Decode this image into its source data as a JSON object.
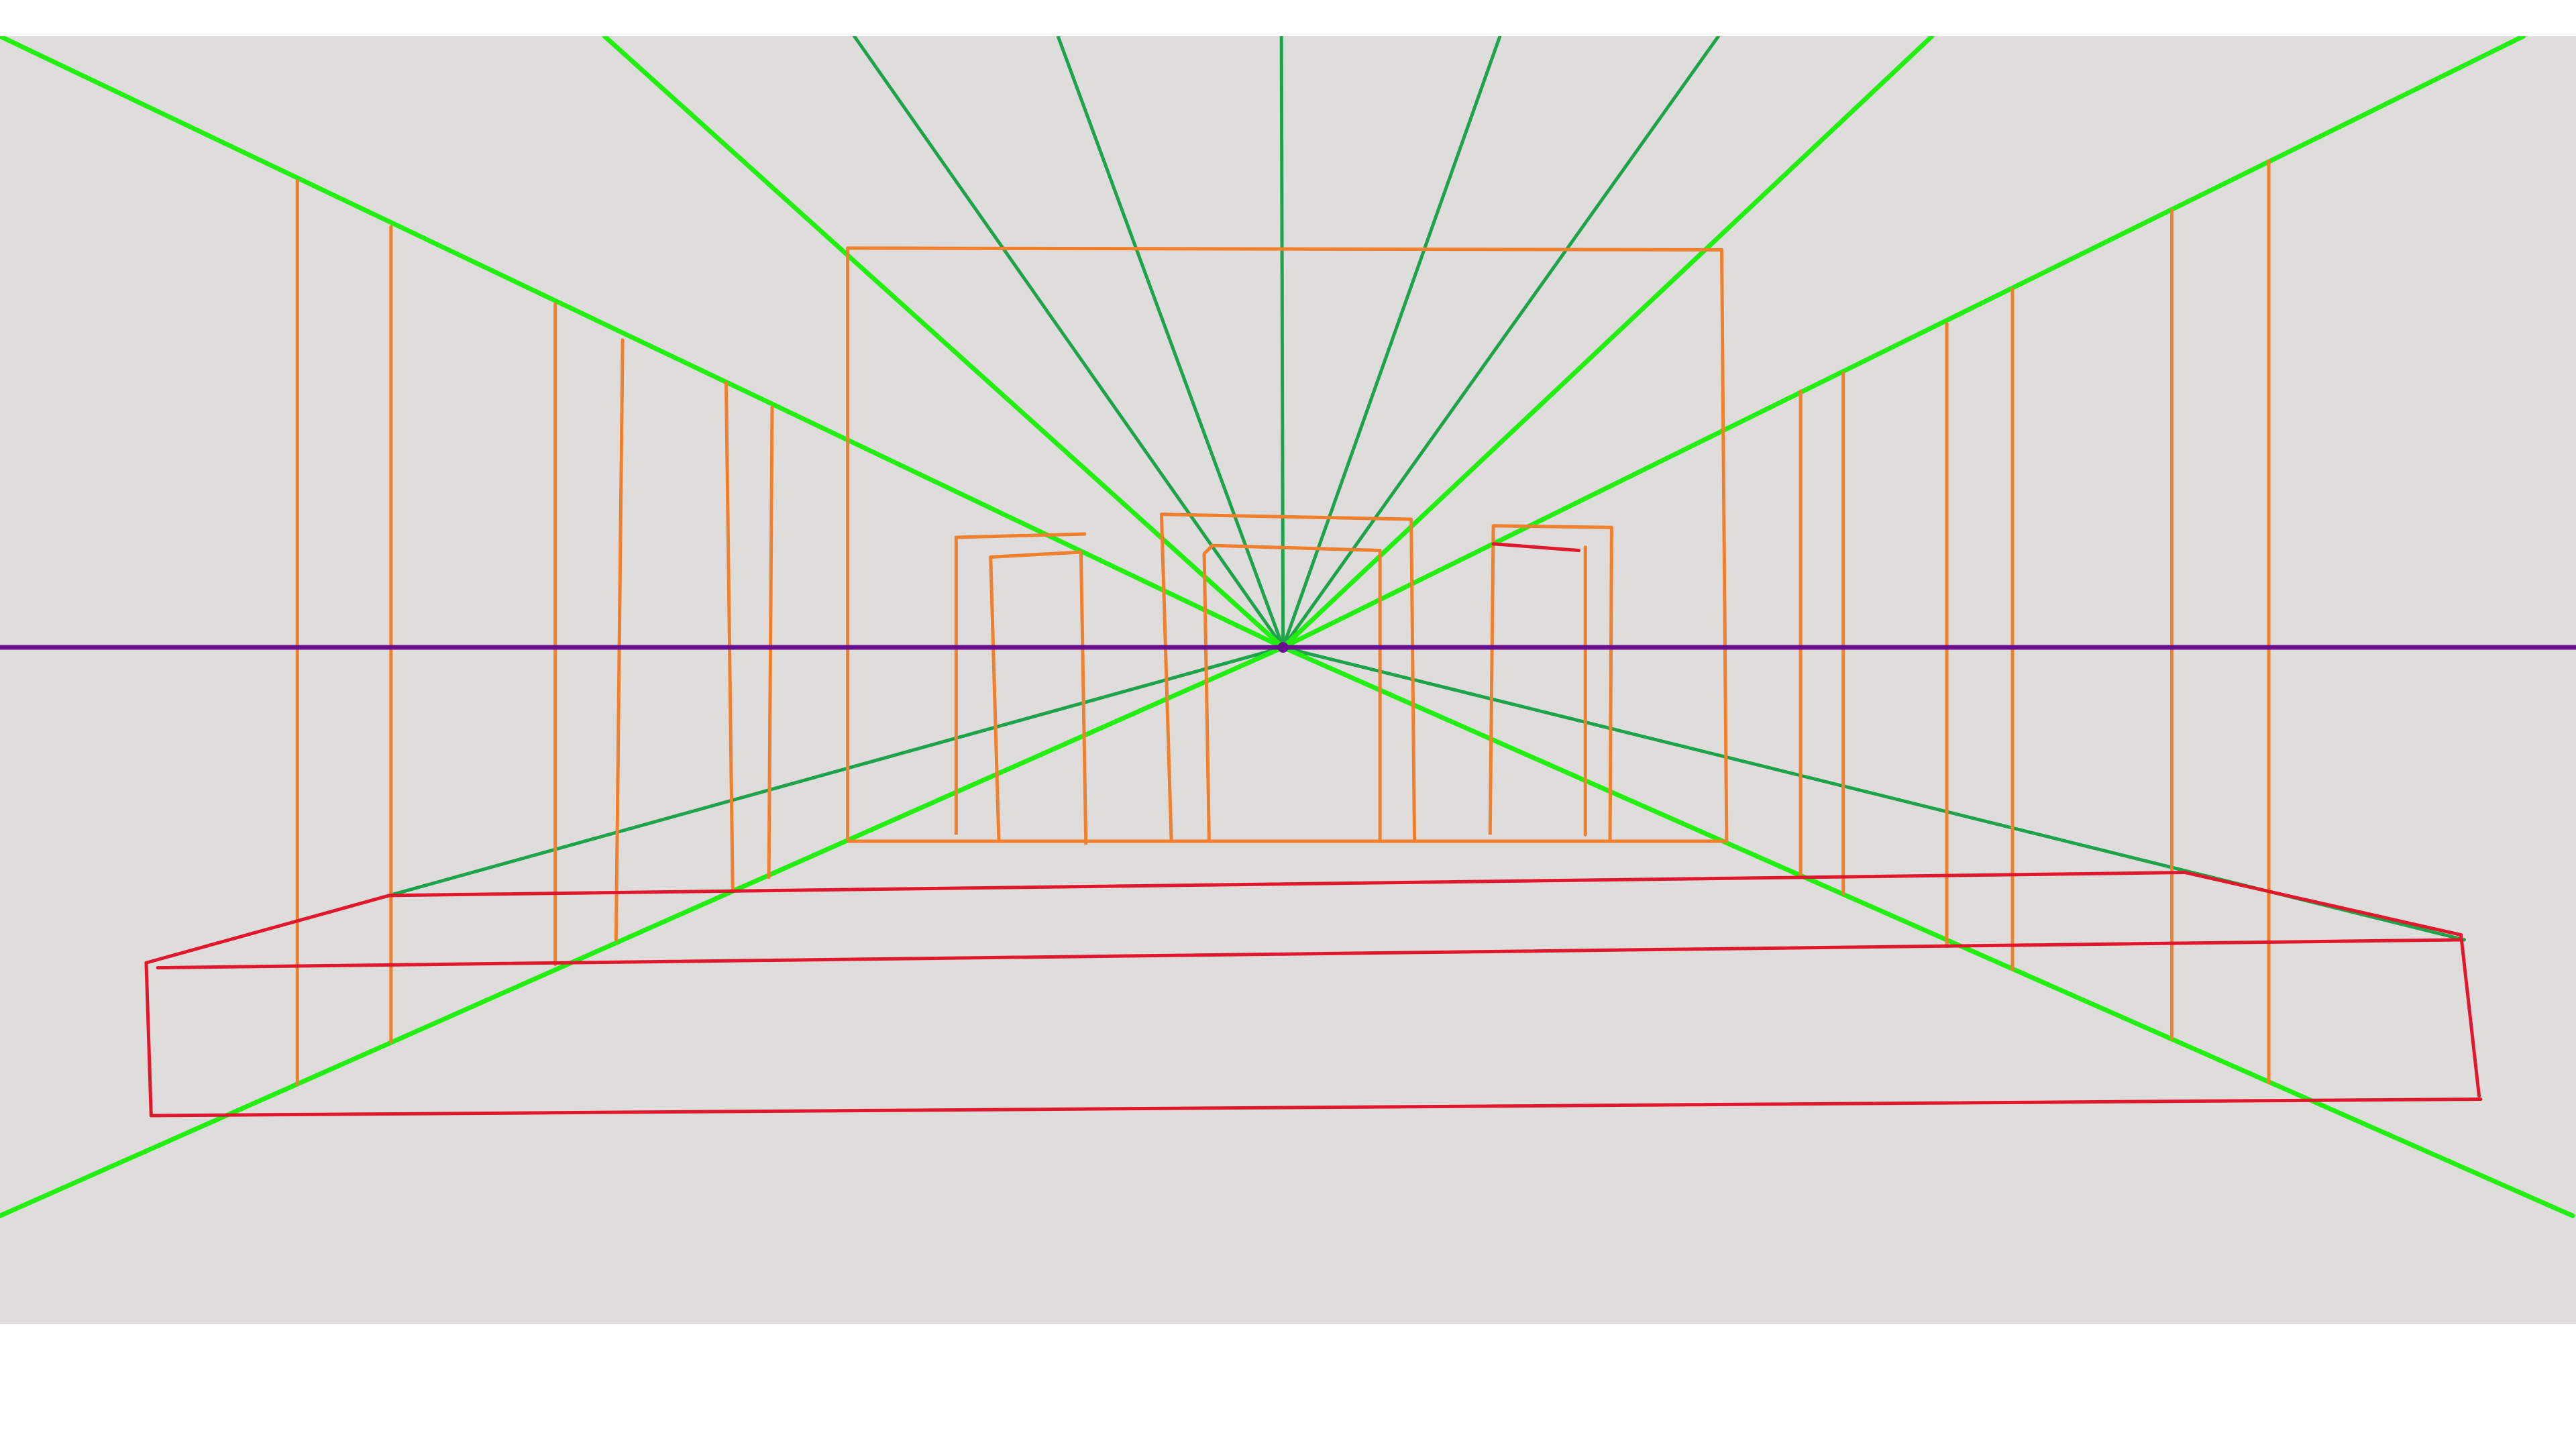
{
  "colors": {
    "canvas_background": "#dfdcdc",
    "page_background": "#ffffff",
    "horizon_line": "#6a0f8e",
    "vanishing_point": "#6a0f8e",
    "bright_guides": "#22ee10",
    "dark_guides": "#1ea34a",
    "vertical_edges": "#f07f2e",
    "floor_edges": "#e0182e"
  },
  "diagram": {
    "type": "one-point-perspective",
    "elements": [
      "horizon-line",
      "vanishing-point",
      "converging-guides",
      "vertical-edges",
      "floor-outline"
    ]
  }
}
